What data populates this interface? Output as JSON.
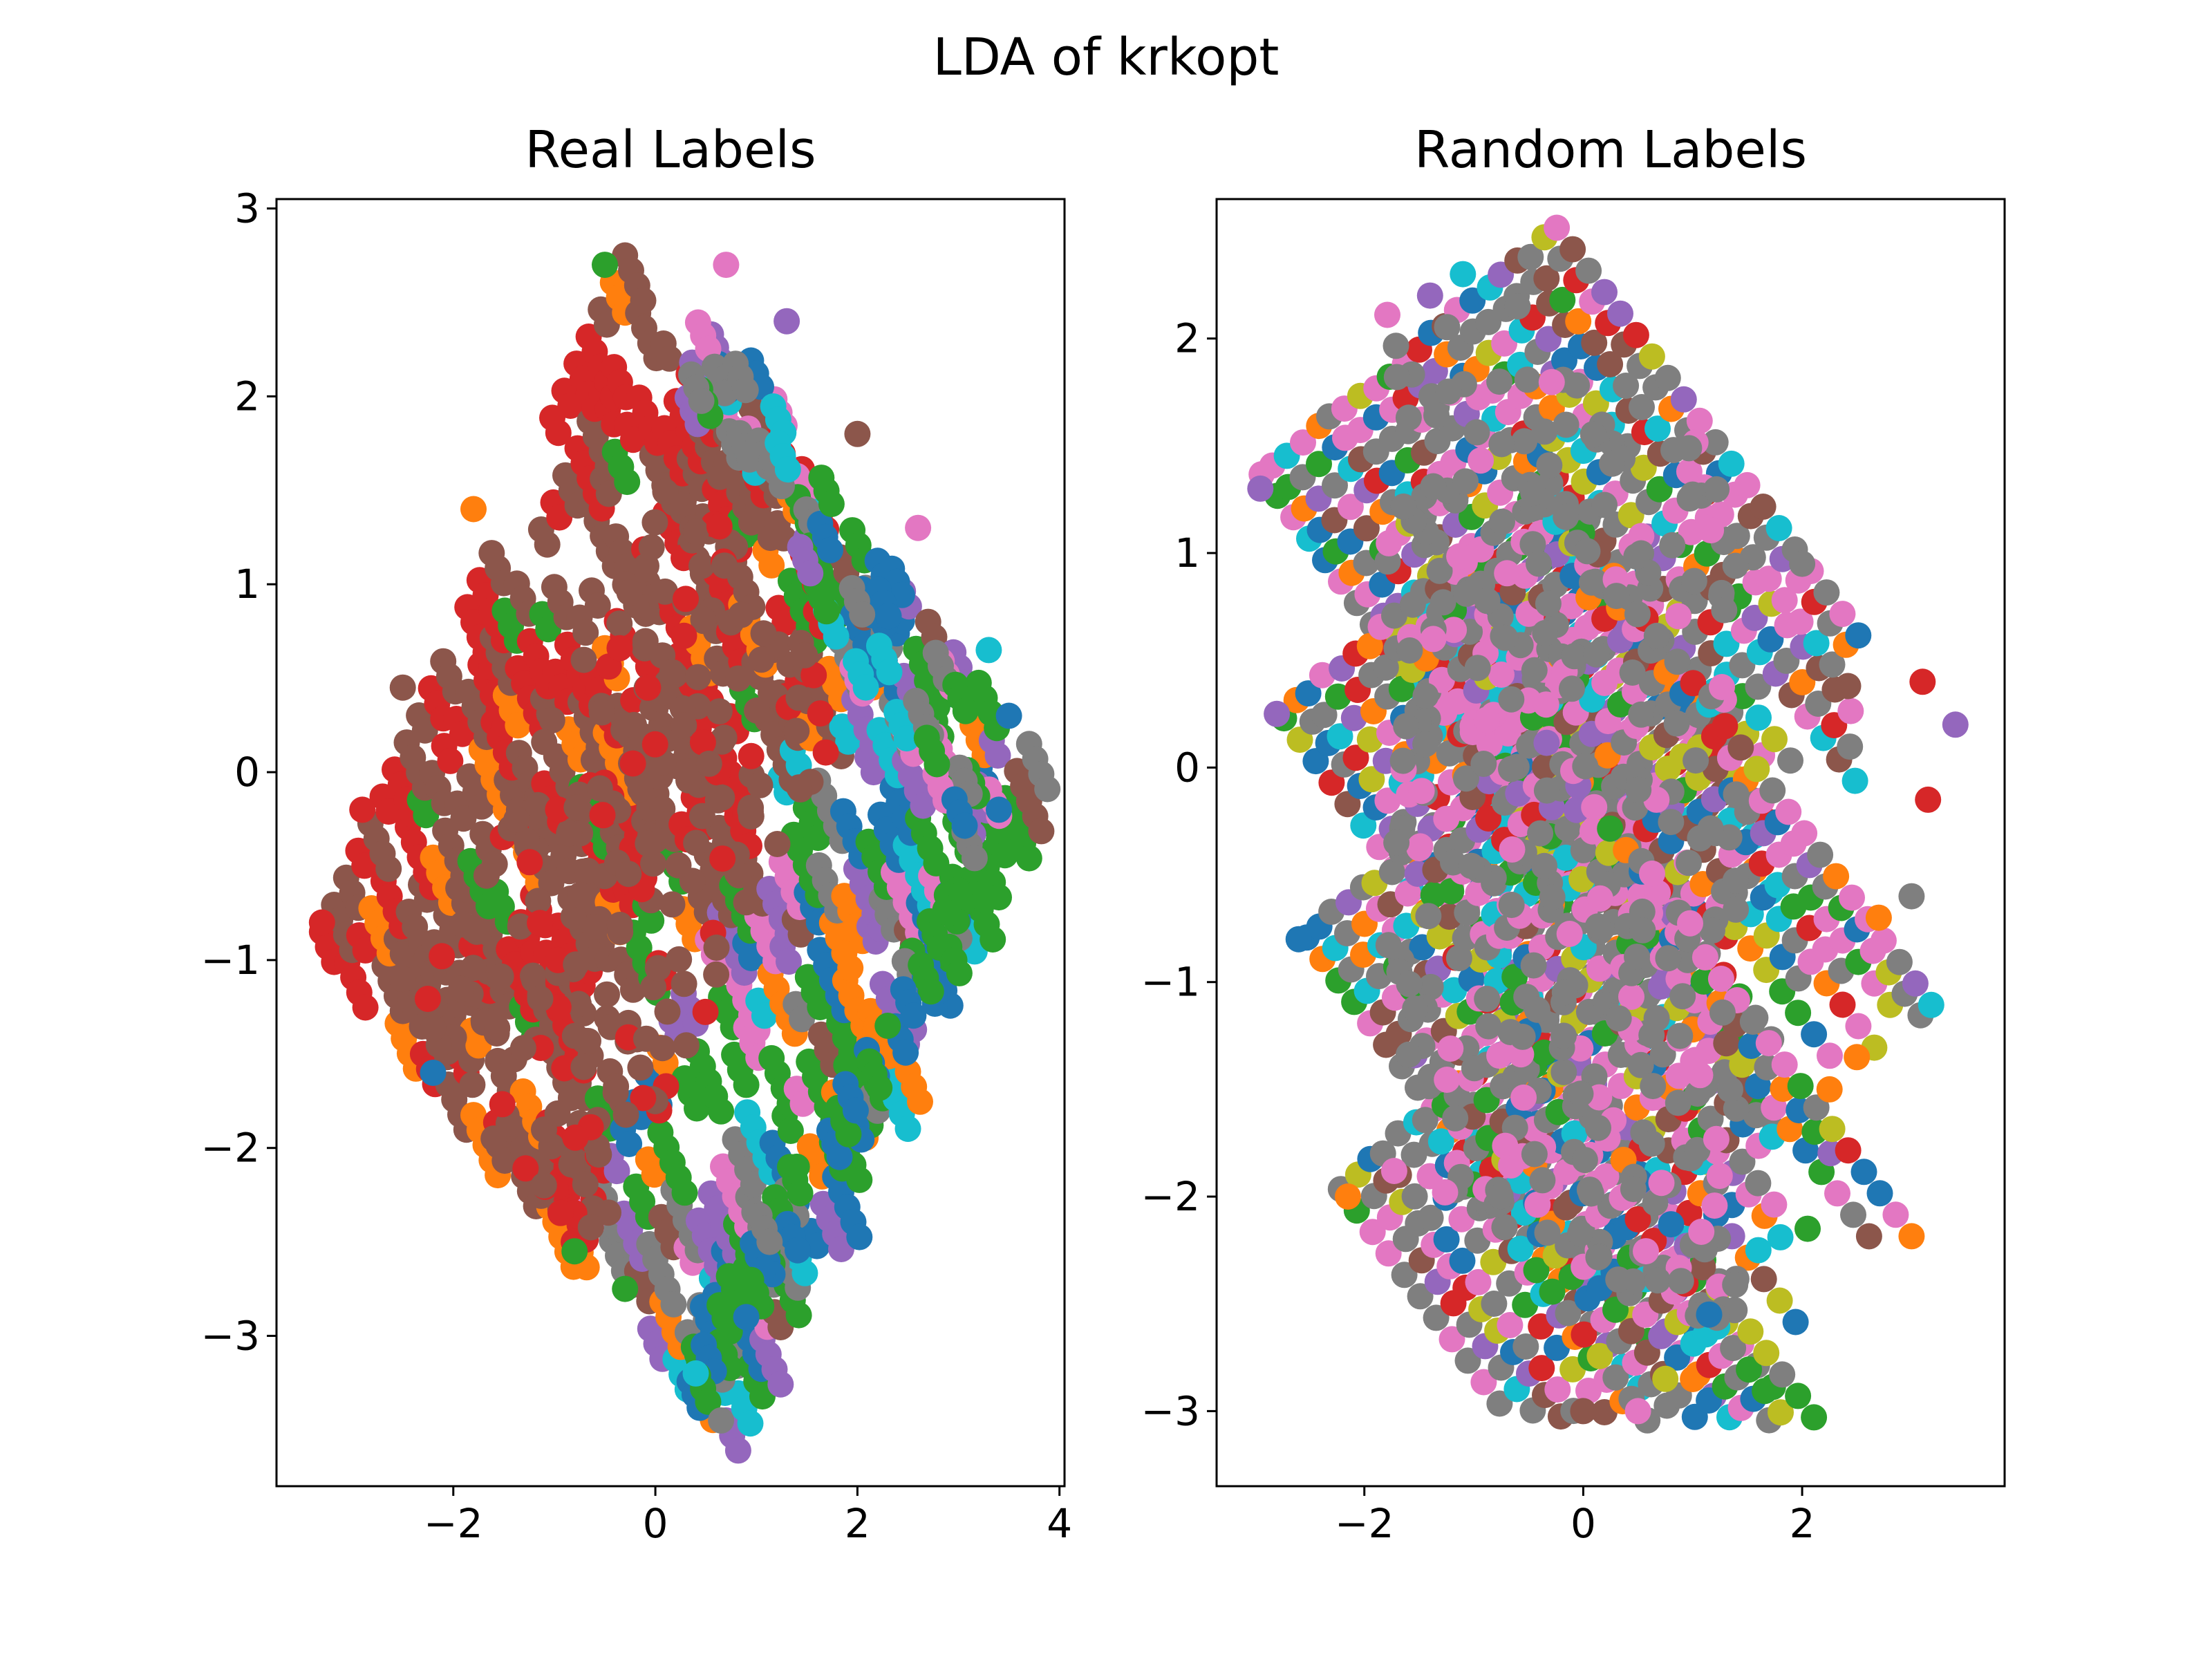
{
  "figure": {
    "suptitle": "LDA of krkopt"
  },
  "palette": [
    "#1f77b4",
    "#ff7f0e",
    "#2ca02c",
    "#d62728",
    "#9467bd",
    "#8c564b",
    "#e377c2",
    "#7f7f7f",
    "#bcbd22",
    "#17becf"
  ],
  "chart_data": [
    {
      "type": "scatter",
      "title": "Real Labels",
      "xlabel": "",
      "ylabel": "",
      "xlim": [
        -3.75,
        4.05
      ],
      "ylim": [
        -3.8,
        3.05
      ],
      "xticks": [
        -2,
        0,
        2,
        4
      ],
      "yticks": [
        -3,
        -2,
        -1,
        0,
        1,
        2,
        3
      ],
      "xtick_labels": [
        "−2",
        "0",
        "2",
        "4"
      ],
      "ytick_labels": [
        "−3",
        "−2",
        "−1",
        "0",
        "1",
        "2",
        "3"
      ],
      "grid": false,
      "legend": "none",
      "point_pattern": "diagonal streaks of overlapping points filling a rhombus; mostly brown and red on the left, green/blue/purple/pink on the right edge",
      "samples": [
        {
          "x": -3.3,
          "y": -0.8,
          "c": 3
        },
        {
          "x": -2.9,
          "y": -0.2,
          "c": 3
        },
        {
          "x": -2.5,
          "y": 0.45,
          "c": 5
        },
        {
          "x": -1.8,
          "y": 1.4,
          "c": 1
        },
        {
          "x": -0.5,
          "y": 2.7,
          "c": 2
        },
        {
          "x": 0.7,
          "y": 2.7,
          "c": 6
        },
        {
          "x": 1.3,
          "y": 2.4,
          "c": 4
        },
        {
          "x": 2.0,
          "y": 1.8,
          "c": 5
        },
        {
          "x": 2.6,
          "y": 1.3,
          "c": 6
        },
        {
          "x": 3.3,
          "y": 0.65,
          "c": 9
        },
        {
          "x": 3.5,
          "y": 0.3,
          "c": 0
        },
        {
          "x": 3.4,
          "y": -0.2,
          "c": 0
        },
        {
          "x": 2.9,
          "y": -0.75,
          "c": 2
        },
        {
          "x": 2.3,
          "y": -1.35,
          "c": 2
        },
        {
          "x": 1.4,
          "y": -2.1,
          "c": 2
        },
        {
          "x": 0.9,
          "y": -2.9,
          "c": 0
        },
        {
          "x": 0.4,
          "y": -3.2,
          "c": 9
        },
        {
          "x": 0.65,
          "y": -3.45,
          "c": 7
        },
        {
          "x": -0.3,
          "y": -2.75,
          "c": 2
        },
        {
          "x": -0.8,
          "y": -2.55,
          "c": 2
        },
        {
          "x": -1.6,
          "y": -1.95,
          "c": 5
        },
        {
          "x": -2.2,
          "y": -1.6,
          "c": 0
        },
        {
          "x": -2.5,
          "y": -1.1,
          "c": 5
        }
      ]
    },
    {
      "type": "scatter",
      "title": "Random Labels",
      "xlabel": "",
      "ylabel": "",
      "xlim": [
        -3.35,
        3.85
      ],
      "ylim": [
        -3.35,
        2.65
      ],
      "xticks": [
        -2,
        0,
        2
      ],
      "yticks": [
        -3,
        -2,
        -1,
        0,
        1,
        2
      ],
      "xtick_labels": [
        "−2",
        "0",
        "2"
      ],
      "ytick_labels": [
        "−3",
        "−2",
        "−1",
        "0",
        "1",
        "2"
      ],
      "grid": false,
      "legend": "none",
      "point_pattern": "parallel diagonal streaks descending to the right forming four stacked bands; all ten colors mixed, grey dominant",
      "samples": [
        {
          "x": -2.95,
          "y": 1.3,
          "c": 4
        },
        {
          "x": -1.1,
          "y": 2.3,
          "c": 9
        },
        {
          "x": -1.4,
          "y": 2.2,
          "c": 4
        },
        {
          "x": -0.6,
          "y": 2.15,
          "c": 7
        },
        {
          "x": 2.0,
          "y": 0.95,
          "c": 7
        },
        {
          "x": 3.1,
          "y": 0.4,
          "c": 3
        },
        {
          "x": 3.4,
          "y": 0.2,
          "c": 4
        },
        {
          "x": 3.15,
          "y": -0.15,
          "c": 3
        },
        {
          "x": 3.0,
          "y": -0.6,
          "c": 7
        },
        {
          "x": 2.7,
          "y": -0.7,
          "c": 1
        },
        {
          "x": 2.5,
          "y": -1.35,
          "c": 1
        },
        {
          "x": 2.25,
          "y": -1.5,
          "c": 1
        },
        {
          "x": 2.05,
          "y": -2.15,
          "c": 2
        },
        {
          "x": 1.6,
          "y": -2.25,
          "c": 9
        },
        {
          "x": 1.15,
          "y": -2.55,
          "c": 0
        },
        {
          "x": 0.75,
          "y": -2.85,
          "c": 8
        },
        {
          "x": 0.5,
          "y": -3.0,
          "c": 6
        },
        {
          "x": 0.0,
          "y": -3.0,
          "c": 5
        },
        {
          "x": -2.15,
          "y": -2.0,
          "c": 1
        },
        {
          "x": -2.6,
          "y": -0.8,
          "c": 0
        },
        {
          "x": -2.8,
          "y": 0.25,
          "c": 4
        }
      ]
    }
  ]
}
